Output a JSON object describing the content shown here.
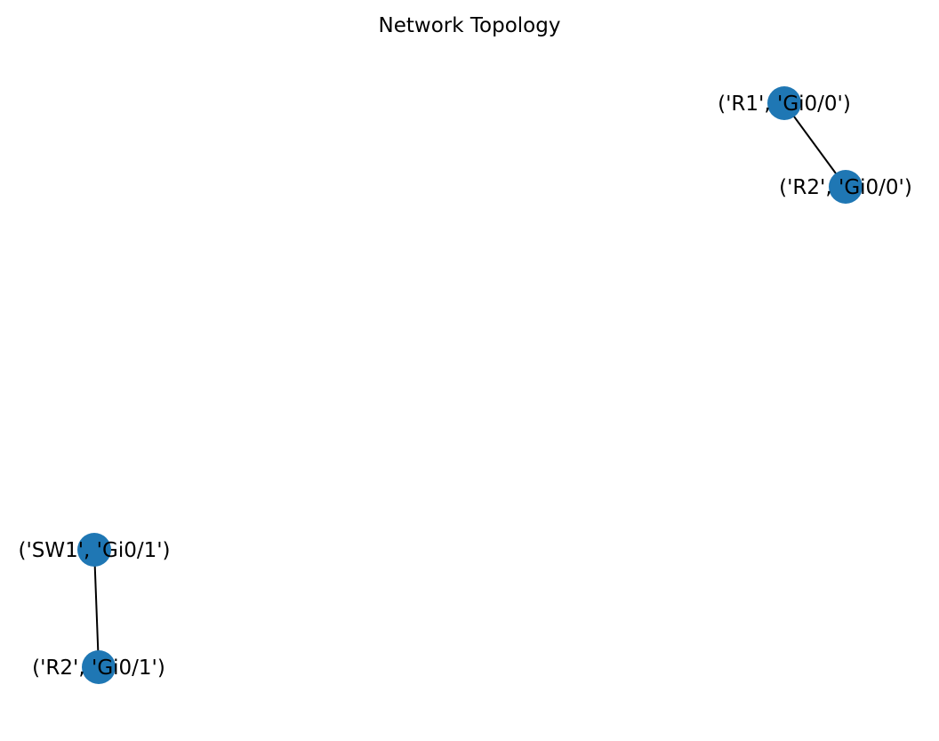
{
  "title": "Network Topology",
  "colors": {
    "node": "#1f77b4",
    "edge": "#000000",
    "background": "#ffffff"
  },
  "nodes": [
    {
      "id": "r1-gi00",
      "label": "('R1', 'Gi0/0')"
    },
    {
      "id": "r2-gi00",
      "label": "('R2', 'Gi0/0')"
    },
    {
      "id": "sw1-gi01",
      "label": "('SW1', 'Gi0/1')"
    },
    {
      "id": "r2-gi01",
      "label": "('R2', 'Gi0/1')"
    }
  ],
  "edges": [
    {
      "source": "r1-gi00",
      "target": "r2-gi00"
    },
    {
      "source": "sw1-gi01",
      "target": "r2-gi01"
    }
  ]
}
